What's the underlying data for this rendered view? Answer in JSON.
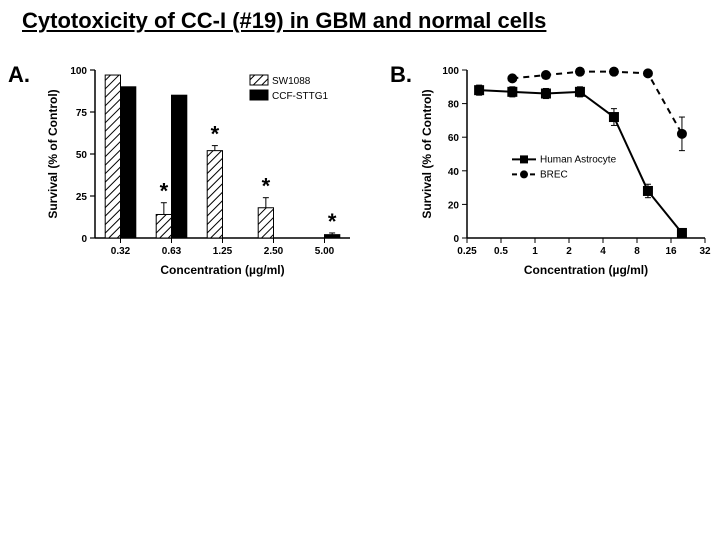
{
  "title": "Cytotoxicity of CC-I (#19) in GBM and normal cells",
  "panelA": {
    "label": "A.",
    "type": "bar",
    "xlabel": "Concentration (µg/ml)",
    "ylabel": "Survival (% of Control)",
    "ylim": [
      0,
      100
    ],
    "yticks": [
      0,
      25,
      50,
      75,
      100
    ],
    "categories": [
      "0.32",
      "0.63",
      "1.25",
      "2.50",
      "5.00"
    ],
    "series": [
      {
        "name": "SW1088",
        "fill": "hatch",
        "color": "#000000",
        "values": [
          97,
          14,
          52,
          18,
          0
        ],
        "errors": [
          0,
          7,
          3,
          6,
          0
        ],
        "sig": [
          false,
          true,
          true,
          true,
          false
        ]
      },
      {
        "name": "CCF-STTG1",
        "fill": "solid",
        "color": "#000000",
        "values": [
          90,
          85,
          0,
          0,
          2
        ],
        "errors": [
          0,
          0,
          0,
          0,
          1
        ],
        "sig": [
          false,
          false,
          false,
          false,
          true
        ]
      }
    ],
    "label_fontsize": 12,
    "tick_fontsize": 10,
    "legend_fontsize": 10,
    "sig_mark": "*",
    "sig_fontsize": 22,
    "axis_color": "#000000",
    "bar_stroke": "#000000",
    "background_color": "#ffffff",
    "bar_group_gap": 0.35,
    "bar_width": 0.3
  },
  "panelB": {
    "label": "B.",
    "type": "line",
    "xlabel": "Concentration (µg/ml)",
    "ylabel": "Survival (% of Control)",
    "xscale": "log2",
    "xticks": [
      0.25,
      0.5,
      1,
      2,
      4,
      8,
      16,
      32
    ],
    "ylim": [
      0,
      100
    ],
    "yticks": [
      0,
      20,
      40,
      60,
      80,
      100
    ],
    "series": [
      {
        "name": "Human Astrocyte",
        "marker": "square",
        "dash": "solid",
        "color": "#000000",
        "x": [
          0.32,
          0.63,
          1.25,
          2.5,
          5,
          10,
          20
        ],
        "y": [
          88,
          87,
          86,
          87,
          72,
          28,
          3
        ],
        "err": [
          3,
          3,
          3,
          3,
          5,
          4,
          1
        ]
      },
      {
        "name": "BREC",
        "marker": "circle",
        "dash": "dashed",
        "color": "#000000",
        "x": [
          0.63,
          1.25,
          2.5,
          5,
          10,
          20
        ],
        "y": [
          95,
          97,
          99,
          99,
          98,
          62
        ],
        "err": [
          0,
          0,
          0,
          0,
          0,
          10
        ]
      }
    ],
    "label_fontsize": 12,
    "tick_fontsize": 10,
    "legend_fontsize": 10,
    "axis_color": "#000000",
    "line_width": 2,
    "marker_size": 5,
    "background_color": "#ffffff"
  }
}
